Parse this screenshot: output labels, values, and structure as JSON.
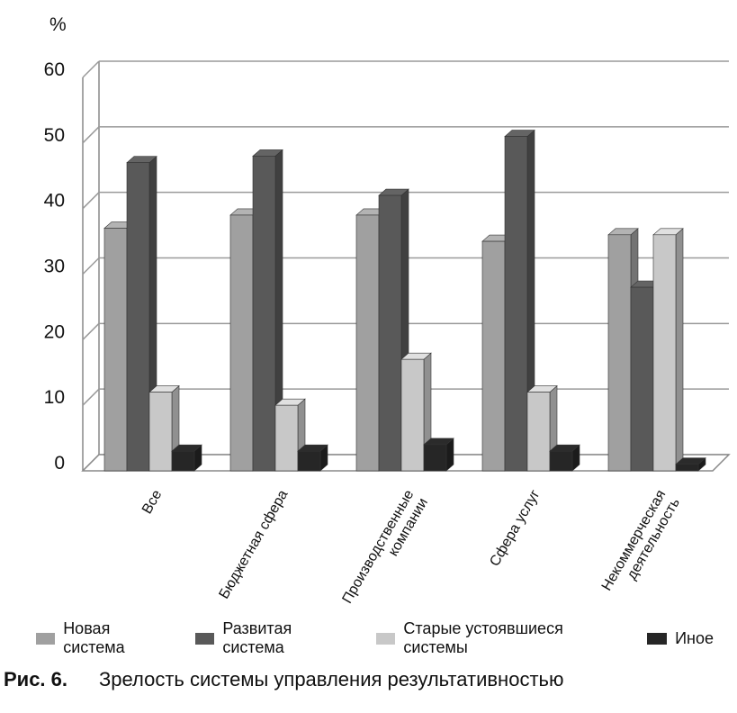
{
  "chart_data": {
    "type": "bar",
    "ylabel": "%",
    "ylim": [
      0,
      60
    ],
    "yticks": [
      0,
      10,
      20,
      30,
      40,
      50,
      60
    ],
    "categories": [
      [
        "Все"
      ],
      [
        "Бюджетная сфера"
      ],
      [
        "Производственные",
        "компании"
      ],
      [
        "Сфера услуг"
      ],
      [
        "Некоммерческая",
        "деятельность"
      ]
    ],
    "series": [
      {
        "name": "Новая система",
        "color": "#a0a0a0",
        "values": [
          37,
          39,
          39,
          35,
          36
        ]
      },
      {
        "name": "Развитая система",
        "color": "#595959",
        "values": [
          47,
          48,
          42,
          51,
          28
        ]
      },
      {
        "name": "Старые устоявшиеся системы",
        "color": "#c8c8c8",
        "values": [
          12,
          10,
          17,
          12,
          36
        ]
      },
      {
        "name": "Иное",
        "color": "#262626",
        "values": [
          3,
          3,
          4,
          3,
          1
        ]
      }
    ],
    "grid": true,
    "legend_position": "bottom",
    "style": "3d-columns"
  },
  "caption": {
    "figure_label": "Рис. 6.",
    "text": "Зрелость системы управления результативностью"
  }
}
